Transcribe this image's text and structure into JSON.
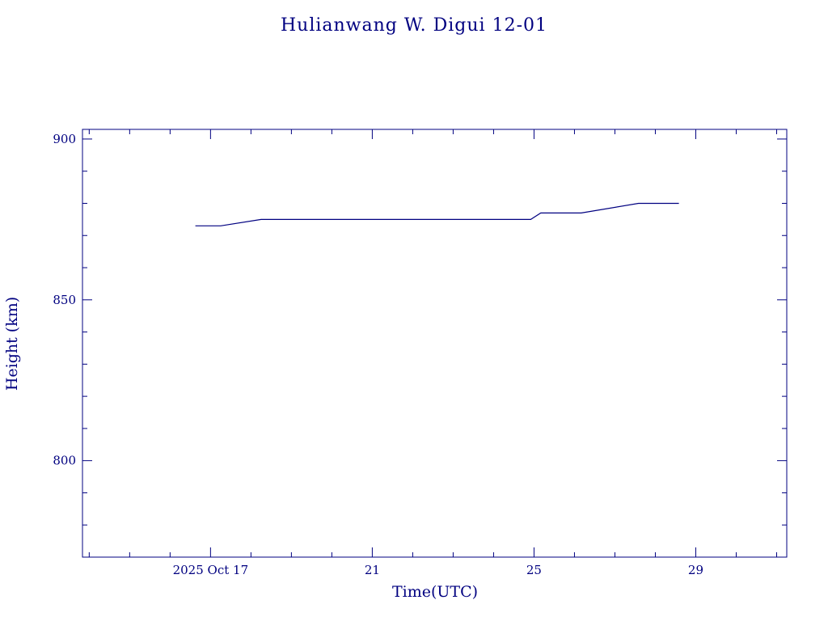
{
  "chart_data": {
    "type": "line",
    "title": "Hulianwang W. Digui 12-01",
    "xlabel": "Time(UTC)",
    "ylabel": "Height (km)",
    "x_unit": "date",
    "xlim": [
      "2025-10-13T20:00",
      "2025-10-31T06:00"
    ],
    "ylim": [
      770,
      903
    ],
    "x_tick_labels": [
      {
        "date": "2025-10-17",
        "label": "2025 Oct 17"
      },
      {
        "date": "2025-10-21",
        "label": "21"
      },
      {
        "date": "2025-10-25",
        "label": "25"
      },
      {
        "date": "2025-10-29",
        "label": "29"
      }
    ],
    "x_minor_ticks_days": 1,
    "y_tick_labels": [
      {
        "value": 800,
        "label": "800"
      },
      {
        "value": 850,
        "label": "850"
      },
      {
        "value": 900,
        "label": "900"
      }
    ],
    "y_minor_ticks_step": 10,
    "grid": false,
    "colors": {
      "axis": "#000080",
      "series": "#000080"
    },
    "series": [
      {
        "x": [
          "2025-10-16T15:00",
          "2025-10-17T06:00",
          "2025-10-18T06:00",
          "2025-10-24T22:00",
          "2025-10-25T04:00",
          "2025-10-26T04:00",
          "2025-10-27T14:00",
          "2025-10-28T14:00"
        ],
        "y": [
          873,
          873,
          875,
          875,
          877,
          877,
          880,
          880
        ]
      }
    ]
  }
}
